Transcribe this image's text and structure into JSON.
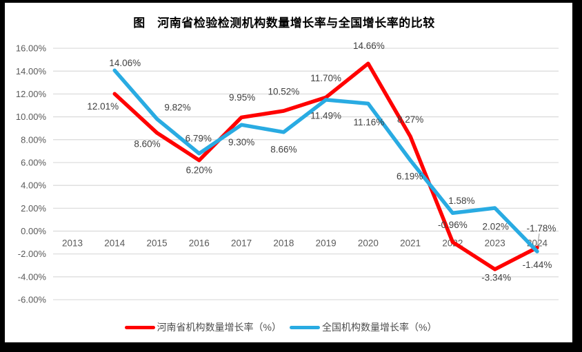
{
  "chart_data": {
    "type": "line",
    "title": "图　河南省检验检测机构数量增长率与全国增长率的比较",
    "x_labels": [
      "2013",
      "2014",
      "2015",
      "2016",
      "2017",
      "2018",
      "2019",
      "2020",
      "2021",
      "2022",
      "2023",
      "2024"
    ],
    "y_tick_labels": [
      "16.00%",
      "14.00%",
      "12.00%",
      "10.00%",
      "8.00%",
      "6.00%",
      "4.00%",
      "2.00%",
      "0.00%",
      "-2.00%",
      "-4.00%",
      "-6.00%"
    ],
    "y_tick_values": [
      16,
      14,
      12,
      10,
      8,
      6,
      4,
      2,
      0,
      -2,
      -4,
      -6
    ],
    "ylim": [
      -6,
      16
    ],
    "grid": true,
    "legend_position": "bottom",
    "grid_color": "#d9d9d9",
    "axis_label_color": "#595959",
    "data_label_color": "#404040",
    "series": [
      {
        "name": "河南省机构数量增长率（%）",
        "color": "#ff0000",
        "values": [
          null,
          12.01,
          8.6,
          6.2,
          9.95,
          10.52,
          11.7,
          14.66,
          8.27,
          -0.96,
          -3.34,
          -1.44
        ],
        "labels": [
          null,
          "12.01%",
          "8.60%",
          "6.20%",
          "9.95%",
          "10.52%",
          "11.70%",
          "14.66%",
          "8.27%",
          "-0.96%",
          "-3.34%",
          "-1.44%"
        ],
        "label_offsets": [
          null,
          [
            -17,
            18
          ],
          [
            -14,
            16
          ],
          [
            0,
            14
          ],
          [
            1,
            -29
          ],
          [
            0,
            -28
          ],
          [
            0,
            -28
          ],
          [
            1,
            -26
          ],
          [
            0,
            -25
          ],
          [
            0,
            -25
          ],
          [
            2,
            12
          ],
          [
            0,
            25
          ]
        ]
      },
      {
        "name": "全国机构数量增长率（%）",
        "color": "#29abe2",
        "values": [
          null,
          14.06,
          9.82,
          6.79,
          9.3,
          8.66,
          11.49,
          11.16,
          6.19,
          1.58,
          2.02,
          -1.78
        ],
        "labels": [
          null,
          "14.06%",
          "9.82%",
          "6.79%",
          "9.30%",
          "8.66%",
          "11.49%",
          "11.16%",
          "6.19%",
          "1.58%",
          "2.02%",
          "-1.78%"
        ],
        "label_offsets": [
          null,
          [
            15,
            -11
          ],
          [
            30,
            -17
          ],
          [
            -1,
            -22
          ],
          [
            0,
            25
          ],
          [
            0,
            25
          ],
          [
            0,
            23
          ],
          [
            1,
            27
          ],
          [
            -1,
            23
          ],
          [
            13,
            -18
          ],
          [
            1,
            27
          ],
          [
            6,
            -34
          ]
        ],
        "callout_index": 11
      }
    ]
  }
}
